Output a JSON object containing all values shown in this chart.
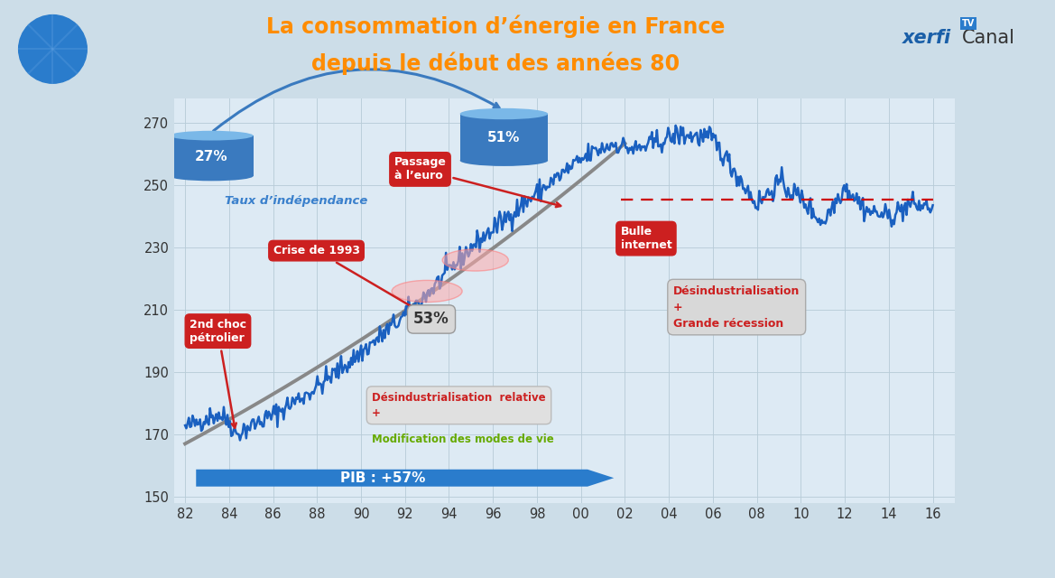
{
  "title_line1": "La consommation d’énergie en France",
  "title_line2": "depuis le début des années 80",
  "title_color": "#FF8C00",
  "bg_color": "#ccdde8",
  "plot_bg_color": "#ddeaf4",
  "grid_color": "#b8ccd8",
  "xtick_labels": [
    "82",
    "84",
    "86",
    "88",
    "90",
    "92",
    "94",
    "96",
    "98",
    "00",
    "02",
    "04",
    "06",
    "08",
    "10",
    "12",
    "14",
    "16"
  ],
  "xticks": [
    82,
    84,
    86,
    88,
    90,
    92,
    94,
    96,
    98,
    100,
    102,
    104,
    106,
    108,
    110,
    112,
    114,
    116
  ],
  "yticks": [
    150,
    170,
    190,
    210,
    230,
    250,
    270
  ],
  "blue_line_color": "#1a60c0",
  "gray_curve_color": "#888888",
  "dashed_line_color": "#cc0000",
  "cyl_color": "#3a7abf",
  "cyl_top_color": "#7ab8e8",
  "red_box_color": "#cc2020",
  "gray_box_color": "#d8d8d8",
  "gray_box_edge": "#aaaaaa",
  "taux_color": "#3a80cc",
  "green_text_color": "#66aa00",
  "pib_arrow_color": "#2a7ccc"
}
